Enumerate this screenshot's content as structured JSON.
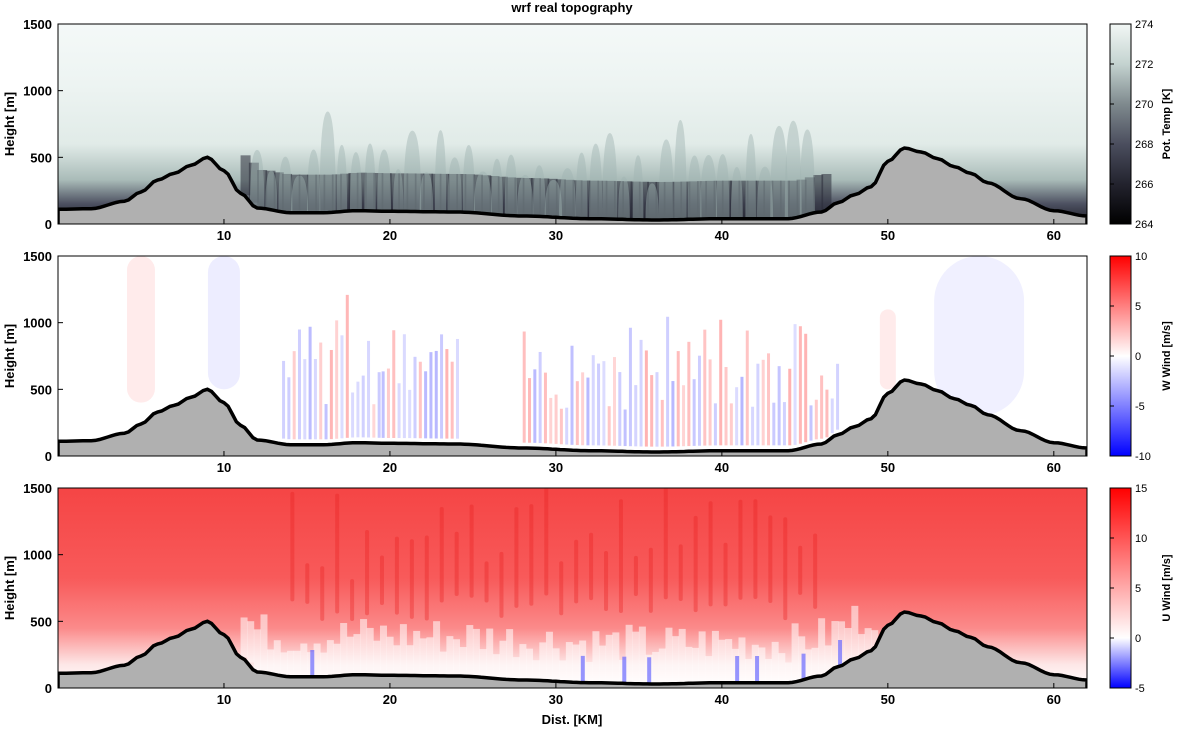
{
  "figure": {
    "title": "wrf real topography",
    "xlabel": "Dist. [KM]"
  },
  "colors": {
    "terrain_fill": "#b0b0b0",
    "terrain_line": "#000000",
    "temp_ramp": [
      "#000000",
      "#23232e",
      "#4b4e5e",
      "#7f8a8e",
      "#b4c6c3",
      "#dbe7e4",
      "#eef4f2"
    ],
    "wind_neg": "#0000ff",
    "wind_mid": "#ffffff",
    "wind_pos": "#ff0000"
  },
  "chart_data": [
    {
      "type": "heatmap",
      "name": "potential-temperature",
      "xlim": [
        0,
        62
      ],
      "ylim": [
        0,
        1500
      ],
      "xticks": [
        10,
        20,
        30,
        40,
        50,
        60
      ],
      "yticks": [
        0,
        500,
        1000,
        1500
      ],
      "ylabel": "Height [m]",
      "colorbar": {
        "label": "Pot. Temp [K]",
        "range": [
          264,
          274
        ],
        "ticks": [
          264,
          266,
          268,
          270,
          272,
          274
        ]
      },
      "terrain_km": [
        0,
        2,
        4,
        5,
        6,
        7,
        8,
        9,
        10,
        11,
        12,
        14,
        16,
        18,
        20,
        24,
        28,
        32,
        36,
        40,
        44,
        46,
        47,
        48,
        49,
        50,
        51,
        52,
        53,
        54,
        55,
        56,
        58,
        60,
        62
      ],
      "terrain_m": [
        110,
        115,
        170,
        240,
        330,
        380,
        440,
        500,
        400,
        230,
        120,
        85,
        85,
        100,
        95,
        90,
        60,
        40,
        30,
        40,
        40,
        90,
        160,
        220,
        280,
        470,
        570,
        540,
        490,
        430,
        380,
        310,
        190,
        100,
        60
      ]
    },
    {
      "type": "heatmap",
      "name": "vertical-wind",
      "xlim": [
        0,
        62
      ],
      "ylim": [
        0,
        1500
      ],
      "xticks": [
        10,
        20,
        30,
        40,
        50,
        60
      ],
      "yticks": [
        0,
        500,
        1000,
        1500
      ],
      "ylabel": "Height [m]",
      "colorbar": {
        "label": "W Wind [m/s]",
        "range": [
          -10,
          10
        ],
        "ticks": [
          -10,
          -5,
          0,
          5,
          10
        ]
      }
    },
    {
      "type": "heatmap",
      "name": "horizontal-wind",
      "xlim": [
        0,
        62
      ],
      "ylim": [
        0,
        1500
      ],
      "xticks": [
        10,
        20,
        30,
        40,
        50,
        60
      ],
      "yticks": [
        0,
        500,
        1000,
        1500
      ],
      "ylabel": "Height [m]",
      "xlabel": "Dist. [KM]",
      "colorbar": {
        "label": "U Wind [m/s]",
        "range": [
          -5,
          15
        ],
        "ticks": [
          -5,
          0,
          5,
          10,
          15
        ]
      }
    }
  ]
}
